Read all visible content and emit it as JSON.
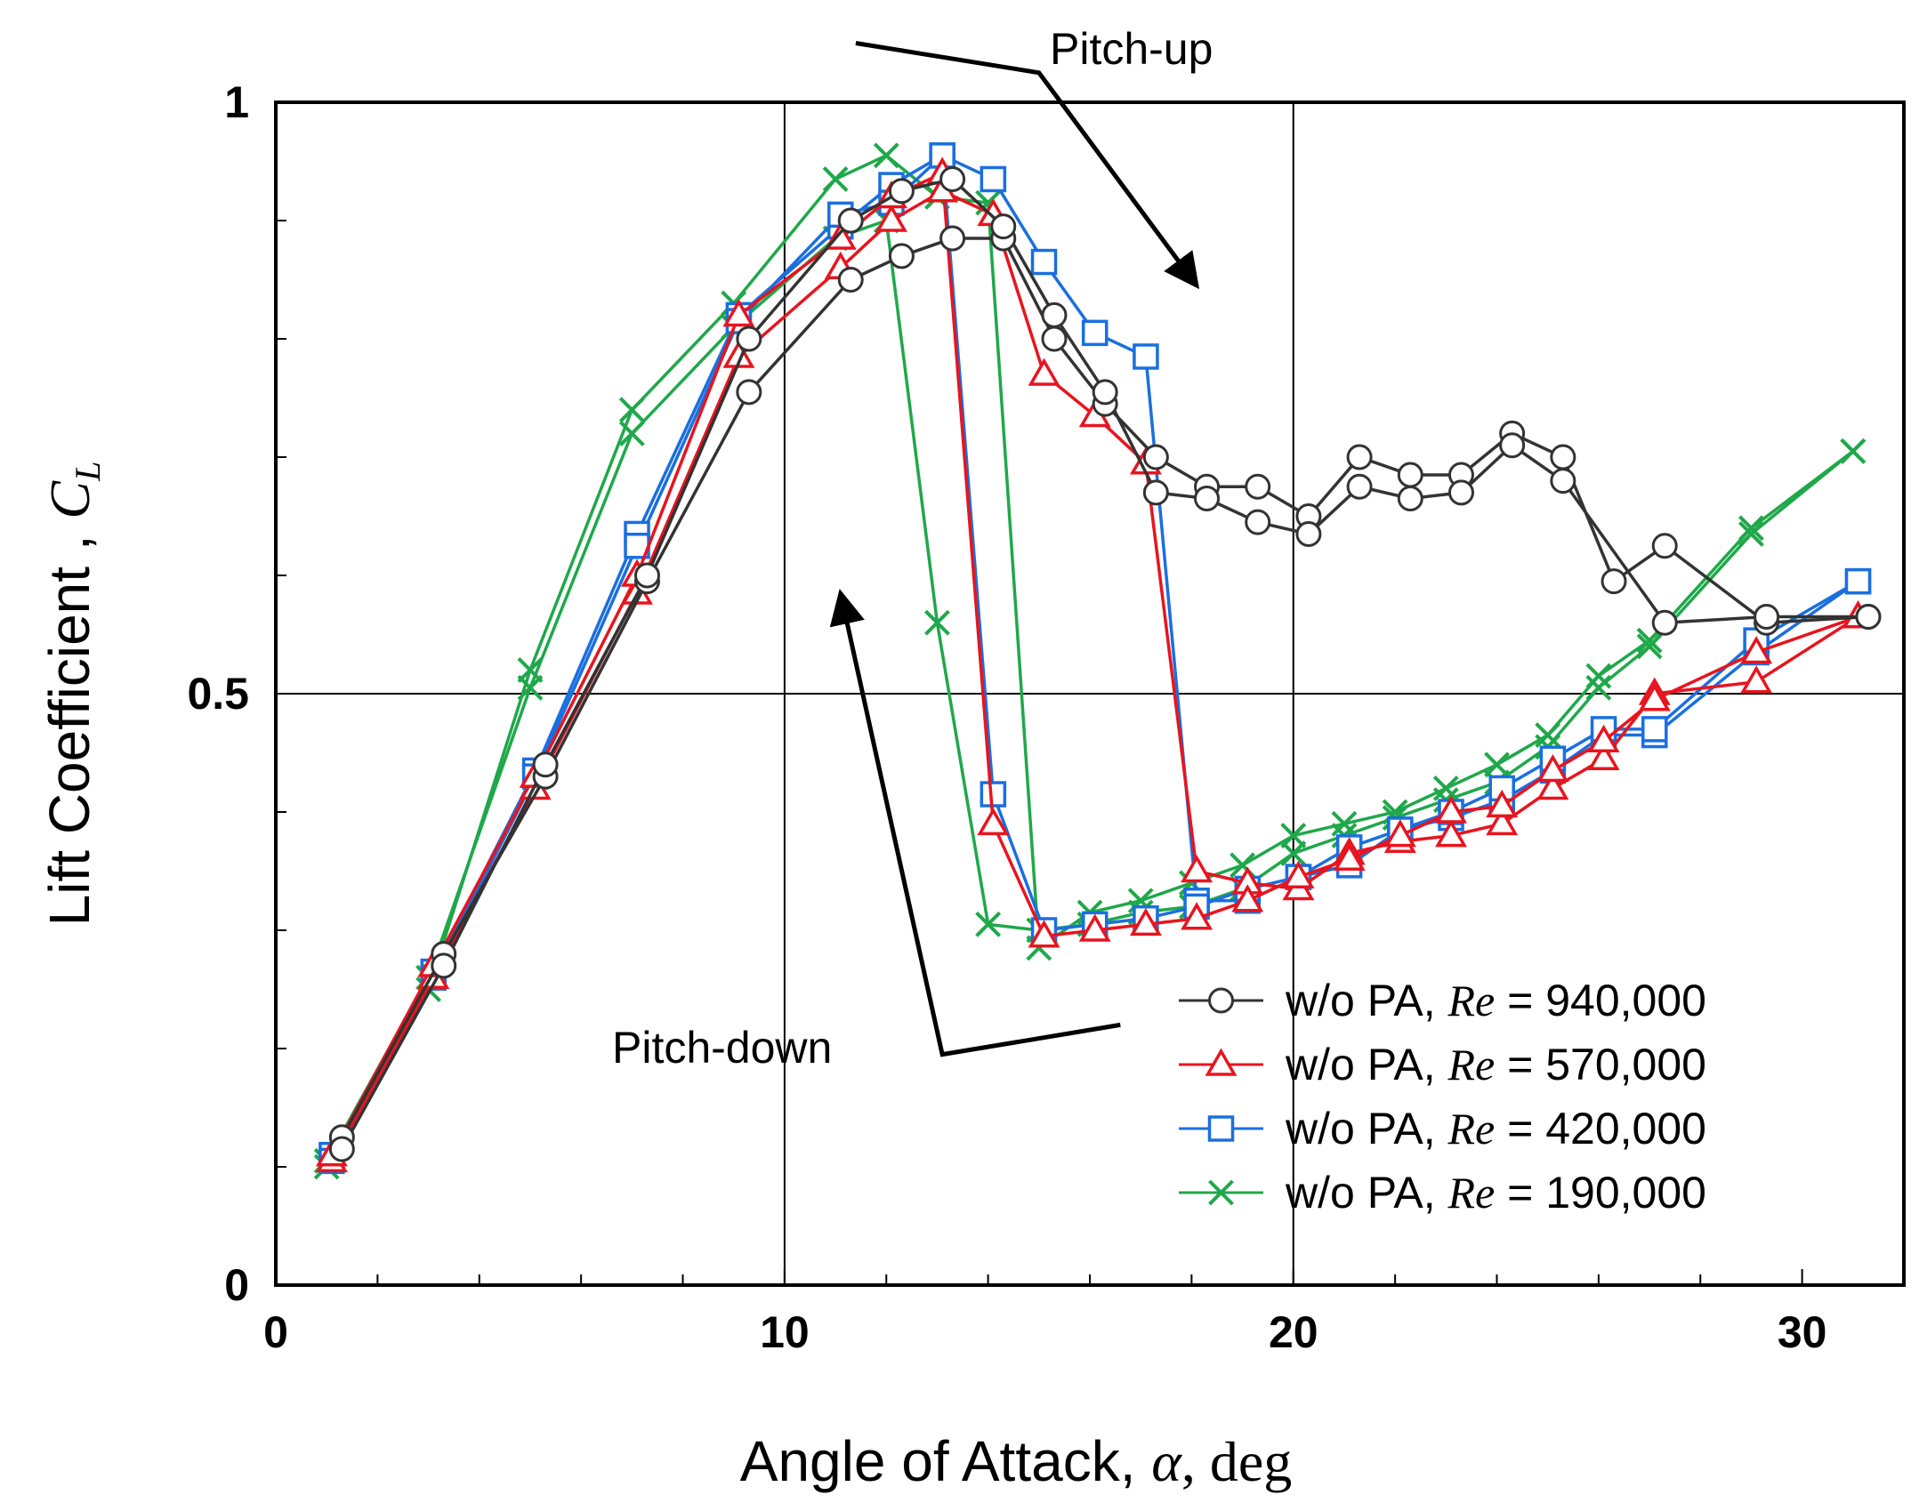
{
  "chart_data": {
    "type": "line",
    "title": "",
    "xlabel": {
      "prefix": "Angle of Attack, ",
      "symbol": "α",
      "suffix": ", deg"
    },
    "ylabel": {
      "prefix": "Lift Coefficient  , ",
      "symbol": "C",
      "subscript": "L"
    },
    "xlim": [
      0,
      32
    ],
    "ylim": [
      0,
      1
    ],
    "x_major_ticks": [
      0,
      10,
      20,
      30
    ],
    "x_major_tick_labels": [
      "0",
      "10",
      "20",
      "30"
    ],
    "x_minor_ticks": [
      2,
      4,
      6,
      8,
      12,
      14,
      16,
      18,
      22,
      24,
      26,
      28
    ],
    "y_major_ticks": [
      0,
      0.5,
      1
    ],
    "y_major_tick_labels": [
      "0",
      "0.5",
      "1"
    ],
    "y_minor_ticks": [
      0.1,
      0.2,
      0.3,
      0.4,
      0.6,
      0.7,
      0.8,
      0.9
    ],
    "grid": {
      "x": [
        10,
        20
      ],
      "y": [
        0.5
      ]
    },
    "annotations": [
      {
        "name": "pitch-up",
        "text": "Pitch-up",
        "path": [
          [
            11.4,
            1.05
          ],
          [
            15.0,
            1.025
          ],
          [
            18.1,
            0.845
          ]
        ]
      },
      {
        "name": "pitch-down",
        "text": "Pitch-down",
        "path": [
          [
            16.6,
            0.22
          ],
          [
            13.1,
            0.195
          ],
          [
            11.1,
            0.585
          ]
        ]
      }
    ],
    "legend": {
      "position": "bottom-right",
      "entries": [
        {
          "prefix": "w/o PA, ",
          "re": "Re",
          "value": " = 940,000"
        },
        {
          "prefix": "w/o PA, ",
          "re": "Re",
          "value": " = 570,000"
        },
        {
          "prefix": "w/o PA, ",
          "re": "Re",
          "value": " = 420,000"
        },
        {
          "prefix": "w/o PA, ",
          "re": "Re",
          "value": " = 190,000"
        }
      ]
    },
    "series": [
      {
        "name": "w/o PA, Re = 940,000",
        "color": "#333333",
        "marker": "circle",
        "up": [
          [
            1.3,
            0.125
          ],
          [
            3.3,
            0.28
          ],
          [
            5.3,
            0.43
          ],
          [
            7.3,
            0.595
          ],
          [
            9.3,
            0.755
          ],
          [
            11.3,
            0.85
          ],
          [
            12.3,
            0.87
          ],
          [
            13.3,
            0.885
          ],
          [
            14.3,
            0.885
          ],
          [
            15.3,
            0.8
          ],
          [
            16.3,
            0.745
          ],
          [
            17.3,
            0.7
          ],
          [
            18.3,
            0.675
          ],
          [
            19.3,
            0.675
          ],
          [
            20.3,
            0.65
          ],
          [
            21.3,
            0.7
          ],
          [
            22.3,
            0.685
          ],
          [
            23.3,
            0.685
          ],
          [
            24.3,
            0.72
          ],
          [
            25.3,
            0.7
          ],
          [
            26.3,
            0.595
          ],
          [
            27.3,
            0.625
          ],
          [
            29.3,
            0.56
          ],
          [
            31.3,
            0.565
          ]
        ],
        "down": [
          [
            31.3,
            0.565
          ],
          [
            29.3,
            0.565
          ],
          [
            27.3,
            0.56
          ],
          [
            25.3,
            0.68
          ],
          [
            24.3,
            0.71
          ],
          [
            23.3,
            0.67
          ],
          [
            22.3,
            0.665
          ],
          [
            21.3,
            0.675
          ],
          [
            20.3,
            0.635
          ],
          [
            19.3,
            0.645
          ],
          [
            18.3,
            0.665
          ],
          [
            17.3,
            0.67
          ],
          [
            16.3,
            0.755
          ],
          [
            15.3,
            0.82
          ],
          [
            14.3,
            0.895
          ],
          [
            13.3,
            0.935
          ],
          [
            12.3,
            0.925
          ],
          [
            11.3,
            0.9
          ],
          [
            9.3,
            0.8
          ],
          [
            7.3,
            0.6
          ],
          [
            5.3,
            0.44
          ],
          [
            3.3,
            0.27
          ],
          [
            1.3,
            0.115
          ]
        ]
      },
      {
        "name": "w/o PA, Re = 570,000",
        "color": "#e8141e",
        "marker": "triangle",
        "up": [
          [
            1.1,
            0.105
          ],
          [
            3.1,
            0.26
          ],
          [
            5.1,
            0.42
          ],
          [
            7.1,
            0.585
          ],
          [
            9.1,
            0.785
          ],
          [
            11.1,
            0.86
          ],
          [
            12.1,
            0.9
          ],
          [
            13.1,
            0.925
          ],
          [
            14.1,
            0.905
          ],
          [
            15.1,
            0.77
          ],
          [
            16.1,
            0.735
          ],
          [
            17.1,
            0.695
          ],
          [
            18.1,
            0.35
          ],
          [
            19.1,
            0.34
          ],
          [
            20.1,
            0.335
          ],
          [
            21.1,
            0.365
          ],
          [
            22.1,
            0.375
          ],
          [
            23.1,
            0.38
          ],
          [
            24.1,
            0.39
          ],
          [
            25.1,
            0.42
          ],
          [
            26.1,
            0.445
          ],
          [
            27.1,
            0.5
          ],
          [
            29.1,
            0.51
          ],
          [
            31.1,
            0.565
          ]
        ],
        "down": [
          [
            31.1,
            0.565
          ],
          [
            29.1,
            0.535
          ],
          [
            27.1,
            0.495
          ],
          [
            26.1,
            0.46
          ],
          [
            25.1,
            0.435
          ],
          [
            24.1,
            0.405
          ],
          [
            23.1,
            0.4
          ],
          [
            22.1,
            0.38
          ],
          [
            21.1,
            0.36
          ],
          [
            20.1,
            0.345
          ],
          [
            19.1,
            0.325
          ],
          [
            18.1,
            0.31
          ],
          [
            17.1,
            0.305
          ],
          [
            16.1,
            0.3
          ],
          [
            15.1,
            0.295
          ],
          [
            14.1,
            0.39
          ],
          [
            13.1,
            0.94
          ],
          [
            12.1,
            0.92
          ],
          [
            11.1,
            0.885
          ],
          [
            9.1,
            0.82
          ],
          [
            7.1,
            0.6
          ],
          [
            5.1,
            0.43
          ],
          [
            3.1,
            0.27
          ],
          [
            1.1,
            0.11
          ]
        ]
      },
      {
        "name": "w/o PA, Re = 420,000",
        "color": "#1a6fe0",
        "marker": "square",
        "up": [
          [
            1.1,
            0.11
          ],
          [
            3.1,
            0.265
          ],
          [
            5.1,
            0.435
          ],
          [
            7.1,
            0.635
          ],
          [
            9.1,
            0.82
          ],
          [
            11.1,
            0.895
          ],
          [
            12.1,
            0.93
          ],
          [
            13.1,
            0.955
          ],
          [
            14.1,
            0.935
          ],
          [
            15.1,
            0.865
          ],
          [
            16.1,
            0.805
          ],
          [
            17.1,
            0.785
          ],
          [
            18.1,
            0.325
          ],
          [
            19.1,
            0.325
          ],
          [
            20.1,
            0.345
          ],
          [
            21.1,
            0.355
          ],
          [
            22.1,
            0.385
          ],
          [
            23.1,
            0.395
          ],
          [
            24.1,
            0.41
          ],
          [
            25.1,
            0.435
          ],
          [
            26.1,
            0.465
          ],
          [
            27.1,
            0.465
          ],
          [
            29.1,
            0.535
          ],
          [
            31.1,
            0.595
          ]
        ],
        "down": [
          [
            31.1,
            0.595
          ],
          [
            29.1,
            0.545
          ],
          [
            27.1,
            0.47
          ],
          [
            26.1,
            0.47
          ],
          [
            25.1,
            0.445
          ],
          [
            24.1,
            0.42
          ],
          [
            23.1,
            0.4
          ],
          [
            22.1,
            0.385
          ],
          [
            21.1,
            0.37
          ],
          [
            20.1,
            0.345
          ],
          [
            19.1,
            0.335
          ],
          [
            18.1,
            0.32
          ],
          [
            17.1,
            0.31
          ],
          [
            16.1,
            0.305
          ],
          [
            15.1,
            0.3
          ],
          [
            14.1,
            0.415
          ],
          [
            13.1,
            0.955
          ],
          [
            12.1,
            0.915
          ],
          [
            11.1,
            0.905
          ],
          [
            9.1,
            0.815
          ],
          [
            7.1,
            0.625
          ],
          [
            5.1,
            0.43
          ],
          [
            3.1,
            0.26
          ],
          [
            1.1,
            0.105
          ]
        ]
      },
      {
        "name": "w/o PA, Re = 190,000",
        "color": "#1fa84a",
        "marker": "x",
        "up": [
          [
            1.0,
            0.1
          ],
          [
            3.0,
            0.25
          ],
          [
            5.0,
            0.52
          ],
          [
            7.0,
            0.74
          ],
          [
            9.0,
            0.83
          ],
          [
            11.0,
            0.935
          ],
          [
            12.0,
            0.955
          ],
          [
            13.0,
            0.92
          ],
          [
            14.0,
            0.915
          ],
          [
            15.0,
            0.285
          ],
          [
            16.0,
            0.315
          ],
          [
            17.0,
            0.325
          ],
          [
            18.0,
            0.34
          ],
          [
            19.0,
            0.355
          ],
          [
            20.0,
            0.38
          ],
          [
            21.0,
            0.39
          ],
          [
            22.0,
            0.4
          ],
          [
            23.0,
            0.42
          ],
          [
            24.0,
            0.44
          ],
          [
            25.0,
            0.465
          ],
          [
            26.0,
            0.515
          ],
          [
            27.0,
            0.545
          ],
          [
            29.0,
            0.64
          ],
          [
            31.0,
            0.705
          ]
        ],
        "down": [
          [
            31.0,
            0.705
          ],
          [
            29.0,
            0.635
          ],
          [
            27.0,
            0.54
          ],
          [
            26.0,
            0.505
          ],
          [
            25.0,
            0.455
          ],
          [
            24.0,
            0.425
          ],
          [
            23.0,
            0.41
          ],
          [
            22.0,
            0.395
          ],
          [
            21.0,
            0.38
          ],
          [
            20.0,
            0.365
          ],
          [
            19.0,
            0.335
          ],
          [
            18.0,
            0.32
          ],
          [
            17.0,
            0.315
          ],
          [
            16.0,
            0.305
          ],
          [
            15.0,
            0.3
          ],
          [
            14.0,
            0.305
          ],
          [
            13.0,
            0.56
          ],
          [
            12.0,
            0.9
          ],
          [
            11.0,
            0.885
          ],
          [
            9.0,
            0.81
          ],
          [
            7.0,
            0.72
          ],
          [
            5.0,
            0.505
          ],
          [
            3.0,
            0.26
          ],
          [
            1.0,
            0.105
          ]
        ]
      }
    ]
  }
}
